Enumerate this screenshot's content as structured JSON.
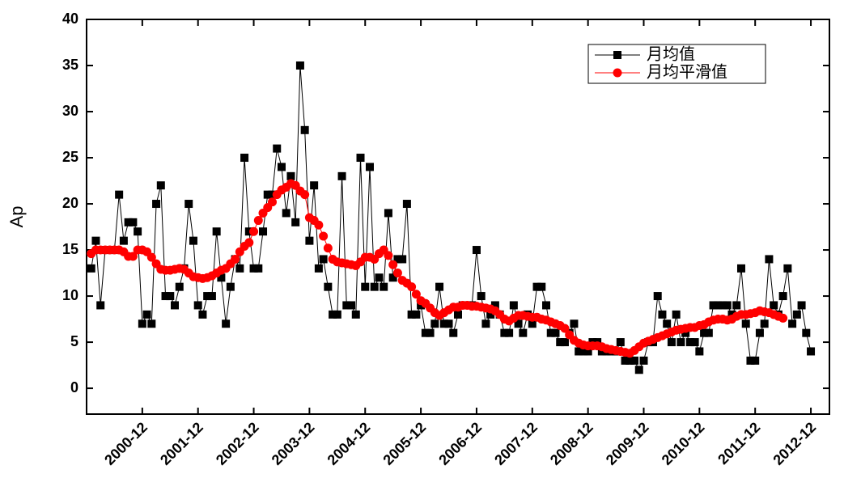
{
  "chart_data": {
    "type": "line",
    "y_label": "Ap",
    "x": [
      "2000-01",
      "2000-02",
      "2000-03",
      "2000-04",
      "2000-05",
      "2000-06",
      "2000-07",
      "2000-08",
      "2000-09",
      "2000-10",
      "2000-11",
      "2000-12",
      "2001-01",
      "2001-02",
      "2001-03",
      "2001-04",
      "2001-05",
      "2001-06",
      "2001-07",
      "2001-08",
      "2001-09",
      "2001-10",
      "2001-11",
      "2001-12",
      "2002-01",
      "2002-02",
      "2002-03",
      "2002-04",
      "2002-05",
      "2002-06",
      "2002-07",
      "2002-08",
      "2002-09",
      "2002-10",
      "2002-11",
      "2002-12",
      "2003-01",
      "2003-02",
      "2003-03",
      "2003-04",
      "2003-05",
      "2003-06",
      "2003-07",
      "2003-08",
      "2003-09",
      "2003-10",
      "2003-11",
      "2003-12",
      "2004-01",
      "2004-02",
      "2004-03",
      "2004-04",
      "2004-05",
      "2004-06",
      "2004-07",
      "2004-08",
      "2004-09",
      "2004-10",
      "2004-11",
      "2004-12",
      "2005-01",
      "2005-02",
      "2005-03",
      "2005-04",
      "2005-05",
      "2005-06",
      "2005-07",
      "2005-08",
      "2005-09",
      "2005-10",
      "2005-11",
      "2005-12",
      "2006-01",
      "2006-02",
      "2006-03",
      "2006-04",
      "2006-05",
      "2006-06",
      "2006-07",
      "2006-08",
      "2006-09",
      "2006-10",
      "2006-11",
      "2006-12",
      "2007-01",
      "2007-02",
      "2007-03",
      "2007-04",
      "2007-05",
      "2007-06",
      "2007-07",
      "2007-08",
      "2007-09",
      "2007-10",
      "2007-11",
      "2007-12",
      "2008-01",
      "2008-02",
      "2008-03",
      "2008-04",
      "2008-05",
      "2008-06",
      "2008-07",
      "2008-08",
      "2008-09",
      "2008-10",
      "2008-11",
      "2008-12",
      "2009-01",
      "2009-02",
      "2009-03",
      "2009-04",
      "2009-05",
      "2009-06",
      "2009-07",
      "2009-08",
      "2009-09",
      "2009-10",
      "2009-11",
      "2009-12",
      "2010-01",
      "2010-02",
      "2010-03",
      "2010-04",
      "2010-05",
      "2010-06",
      "2010-07",
      "2010-08",
      "2010-09",
      "2010-10",
      "2010-11",
      "2010-12",
      "2011-01",
      "2011-02",
      "2011-03",
      "2011-04",
      "2011-05",
      "2011-06",
      "2011-07",
      "2011-08",
      "2011-09",
      "2011-10",
      "2011-11",
      "2011-12",
      "2012-01",
      "2012-02",
      "2012-03",
      "2012-04",
      "2012-05",
      "2012-06",
      "2012-07",
      "2012-08",
      "2012-09",
      "2012-10",
      "2012-11",
      "2012-12"
    ],
    "series": [
      {
        "name": "月均值",
        "color": "#000000",
        "marker": "square",
        "values": [
          13,
          16,
          9,
          15,
          15,
          15,
          21,
          16,
          18,
          18,
          17,
          7,
          8,
          7,
          20,
          22,
          10,
          10,
          9,
          11,
          13,
          20,
          16,
          9,
          8,
          10,
          10,
          17,
          12,
          7,
          11,
          14,
          13,
          25,
          17,
          13,
          13,
          17,
          21,
          21,
          26,
          24,
          19,
          23,
          18,
          35,
          28,
          16,
          22,
          13,
          14,
          11,
          8,
          8,
          23,
          9,
          9,
          8,
          25,
          11,
          24,
          11,
          12,
          11,
          19,
          12,
          14,
          14,
          20,
          8,
          8,
          9,
          6,
          6,
          7,
          11,
          7,
          7,
          6,
          8,
          9,
          9,
          9,
          15,
          10,
          7,
          8,
          9,
          8,
          6,
          6,
          9,
          7,
          6,
          8,
          7,
          11,
          11,
          9,
          6,
          6,
          5,
          5,
          6,
          7,
          4,
          4,
          4,
          5,
          5,
          4,
          4,
          4,
          4,
          5,
          3,
          3,
          3,
          2,
          3,
          5,
          5,
          10,
          8,
          7,
          5,
          8,
          5,
          6,
          5,
          5,
          4,
          6,
          6,
          9,
          9,
          9,
          9,
          8,
          9,
          13,
          7,
          3,
          3,
          6,
          7,
          14,
          9,
          8,
          10,
          13,
          7,
          8,
          9,
          6,
          4
        ]
      },
      {
        "name": "月均平滑值",
        "color": "#ff0000",
        "marker": "circle",
        "values": [
          14.6,
          15,
          15,
          15,
          15,
          15,
          15,
          14.8,
          14.3,
          14.3,
          15,
          15,
          14.8,
          14.2,
          13.5,
          12.9,
          12.8,
          12.8,
          12.9,
          13,
          12.9,
          12.5,
          12.1,
          12,
          11.9,
          12,
          12.2,
          12.5,
          12.8,
          13,
          13.5,
          14,
          14.8,
          15.4,
          15.8,
          17,
          18.2,
          19,
          19.6,
          20.2,
          21,
          21.5,
          21.8,
          22.2,
          22,
          21.4,
          21,
          18.5,
          18.2,
          17.7,
          16.5,
          15.2,
          14,
          13.7,
          13.6,
          13.5,
          13.4,
          13.3,
          13.7,
          14.2,
          14.2,
          14,
          14.6,
          15,
          14.4,
          13.4,
          12.5,
          11.7,
          11.4,
          11,
          10.2,
          9.5,
          9.2,
          8.7,
          8.2,
          7.9,
          8.2,
          8.5,
          8.8,
          8.8,
          9,
          9,
          8.9,
          8.9,
          8.8,
          8.7,
          8.6,
          8.4,
          8,
          7.5,
          7.3,
          7.6,
          7.9,
          7.9,
          7.8,
          7.7,
          7.7,
          7.5,
          7.4,
          7.2,
          7,
          6.8,
          6.5,
          5.8,
          5.2,
          4.9,
          4.7,
          4.6,
          4.6,
          4.6,
          4.5,
          4.3,
          4.2,
          4.1,
          4,
          3.9,
          3.8,
          4.1,
          4.5,
          4.9,
          5.1,
          5.3,
          5.5,
          5.7,
          5.9,
          6.1,
          6.3,
          6.4,
          6.5,
          6.6,
          6.6,
          6.8,
          6.9,
          7.2,
          7.4,
          7.5,
          7.5,
          7.4,
          7.5,
          7.8,
          8,
          8,
          8.1,
          8.2,
          8.4,
          8.3,
          8.2,
          8,
          7.8,
          7.6,
          null,
          null,
          null,
          null,
          null,
          null
        ]
      }
    ],
    "xlim": [
      "1999-12",
      "2013-04"
    ],
    "xticks": [
      "2000-12",
      "2001-12",
      "2002-12",
      "2003-12",
      "2004-12",
      "2005-12",
      "2006-12",
      "2007-12",
      "2008-12",
      "2009-12",
      "2010-12",
      "2011-12",
      "2012-12"
    ],
    "ylim": [
      -2.8,
      40
    ],
    "yticks": [
      0,
      5,
      10,
      15,
      20,
      25,
      30,
      35,
      40
    ],
    "legend": "upper-right"
  }
}
